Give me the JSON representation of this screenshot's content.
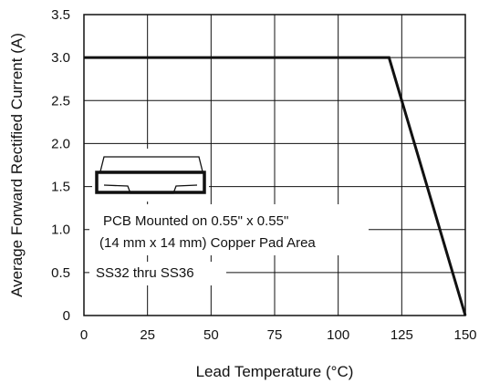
{
  "chart_data": {
    "type": "line",
    "title": "",
    "xlabel": "Lead Temperature (°C)",
    "ylabel": "Average Forward Rectified Current (A)",
    "xlim": [
      0,
      150
    ],
    "ylim": [
      0,
      3.5
    ],
    "x_ticks": [
      0,
      25,
      50,
      75,
      100,
      125,
      150
    ],
    "x_tick_labels": [
      "0",
      "25",
      "50",
      "75",
      "100",
      "125",
      "150"
    ],
    "y_ticks": [
      0,
      0.5,
      1.0,
      1.5,
      2.0,
      2.5,
      3.0,
      3.5
    ],
    "y_tick_labels": [
      "0",
      "0.5",
      "1.0",
      "1.5",
      "2.0",
      "2.5",
      "3.0",
      "3.5"
    ],
    "grid": true,
    "series": [
      {
        "x": [
          0,
          120,
          150
        ],
        "y": [
          3.0,
          3.0,
          0
        ]
      }
    ],
    "annotations": {
      "pcb_line1": "PCB Mounted on 0.55\" x 0.55\"",
      "pcb_line2": "(14 mm x 14 mm) Copper Pad Area",
      "part_range": "SS32 thru SS36"
    },
    "inset_icon": "package-outline-icon"
  }
}
